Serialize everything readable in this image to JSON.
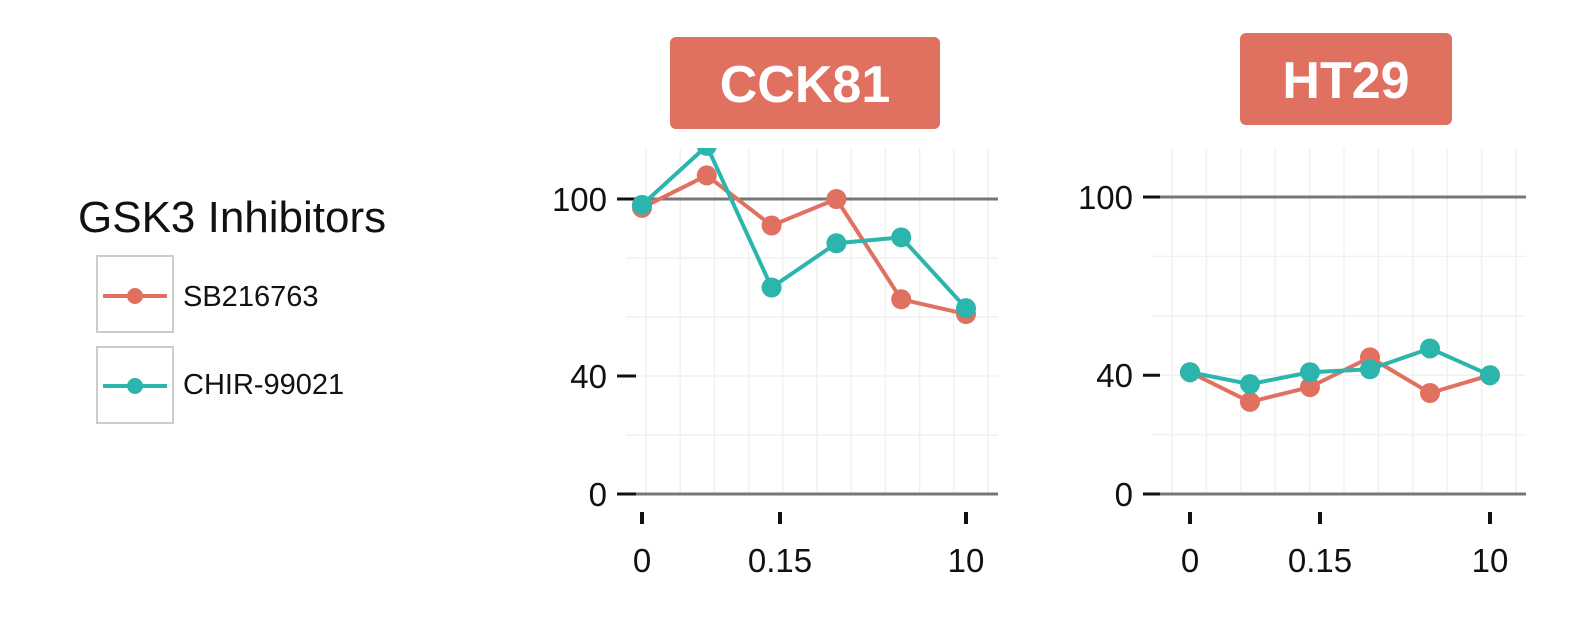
{
  "chart_data": {
    "type": "line",
    "x_ticks": [
      "0",
      "0.15",
      "10"
    ],
    "y_ticks": [
      0,
      40,
      100
    ],
    "ylim": [
      0,
      110
    ],
    "grid": true,
    "legend": {
      "title": "GSK3 Inhibitors",
      "position": "left",
      "entries": [
        "SB216763",
        "CHIR-99021"
      ]
    },
    "colors": {
      "SB216763": "#e07060",
      "CHIR-99021": "#2bb5ad",
      "strip": "#e07060"
    },
    "panels": [
      {
        "title": "CCK81",
        "x": [
          0,
          1,
          2,
          3,
          4,
          5
        ],
        "series": [
          {
            "name": "SB216763",
            "values": [
              97,
              108,
              91,
              100,
              66,
              61
            ]
          },
          {
            "name": "CHIR-99021",
            "values": [
              98,
              118,
              70,
              85,
              87,
              63
            ]
          }
        ]
      },
      {
        "title": "HT29",
        "x": [
          0,
          1,
          2,
          3,
          4,
          5
        ],
        "series": [
          {
            "name": "SB216763",
            "values": [
              41,
              31,
              36,
              46,
              34,
              40
            ]
          },
          {
            "name": "CHIR-99021",
            "values": [
              41,
              37,
              41,
              42,
              49,
              40
            ]
          }
        ]
      }
    ]
  }
}
